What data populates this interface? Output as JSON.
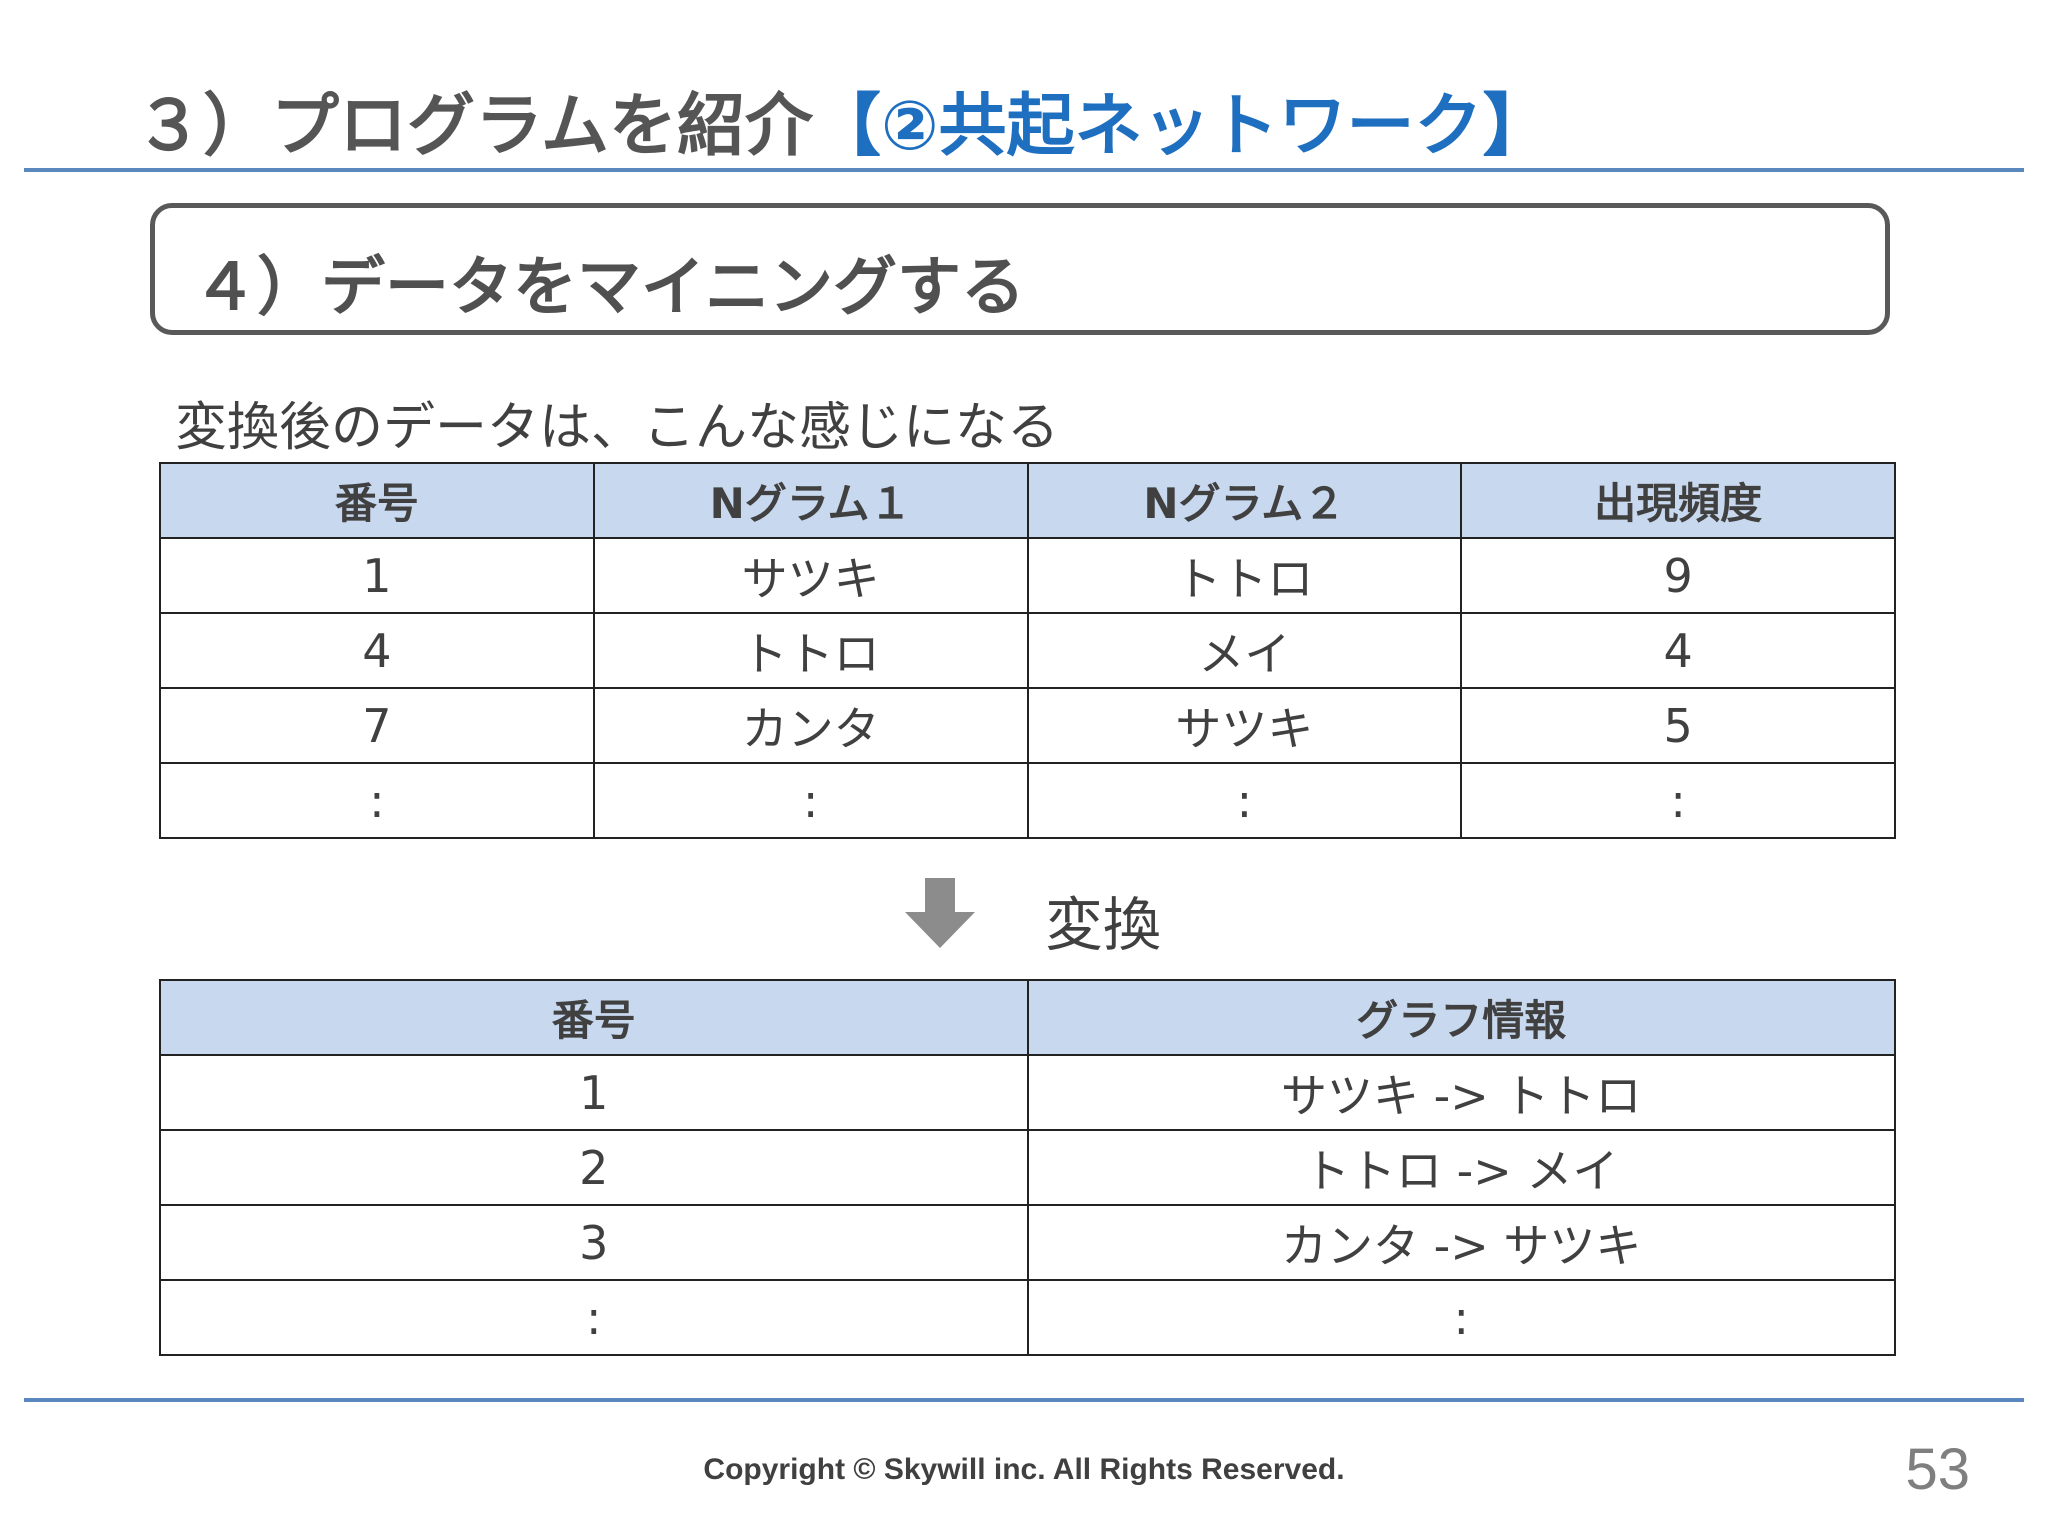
{
  "title": {
    "prefix": "３）プログラムを紹介",
    "accent": "【②共起ネットワーク】"
  },
  "section_heading": "４）データをマイニングする",
  "intro_text": "変換後のデータは、こんな感じになる",
  "table1": {
    "headers": [
      "番号",
      "Nグラム１",
      "Nグラム２",
      "出現頻度"
    ],
    "rows": [
      [
        "1",
        "サツキ",
        "トトロ",
        "9"
      ],
      [
        "4",
        "トトロ",
        "メイ",
        "4"
      ],
      [
        "7",
        "カンタ",
        "サツキ",
        "5"
      ],
      [
        ":",
        ":",
        ":",
        ":"
      ]
    ]
  },
  "convert": {
    "icon": "down-arrow-icon",
    "label": "変換"
  },
  "table2": {
    "headers": [
      "番号",
      "グラフ情報"
    ],
    "rows": [
      [
        "1",
        "サツキ -> トトロ"
      ],
      [
        "2",
        "トトロ -> メイ"
      ],
      [
        "3",
        "カンタ -> サツキ"
      ],
      [
        ":",
        ":"
      ]
    ]
  },
  "footer": {
    "copyright": "Copyright © Skywill inc. All Rights Reserved.",
    "page_number": "53"
  },
  "colors": {
    "accent": "#1f6fc0",
    "rule": "#5b87bf",
    "header_fill": "#c8d8ef",
    "arrow": "#8c8c8c"
  }
}
